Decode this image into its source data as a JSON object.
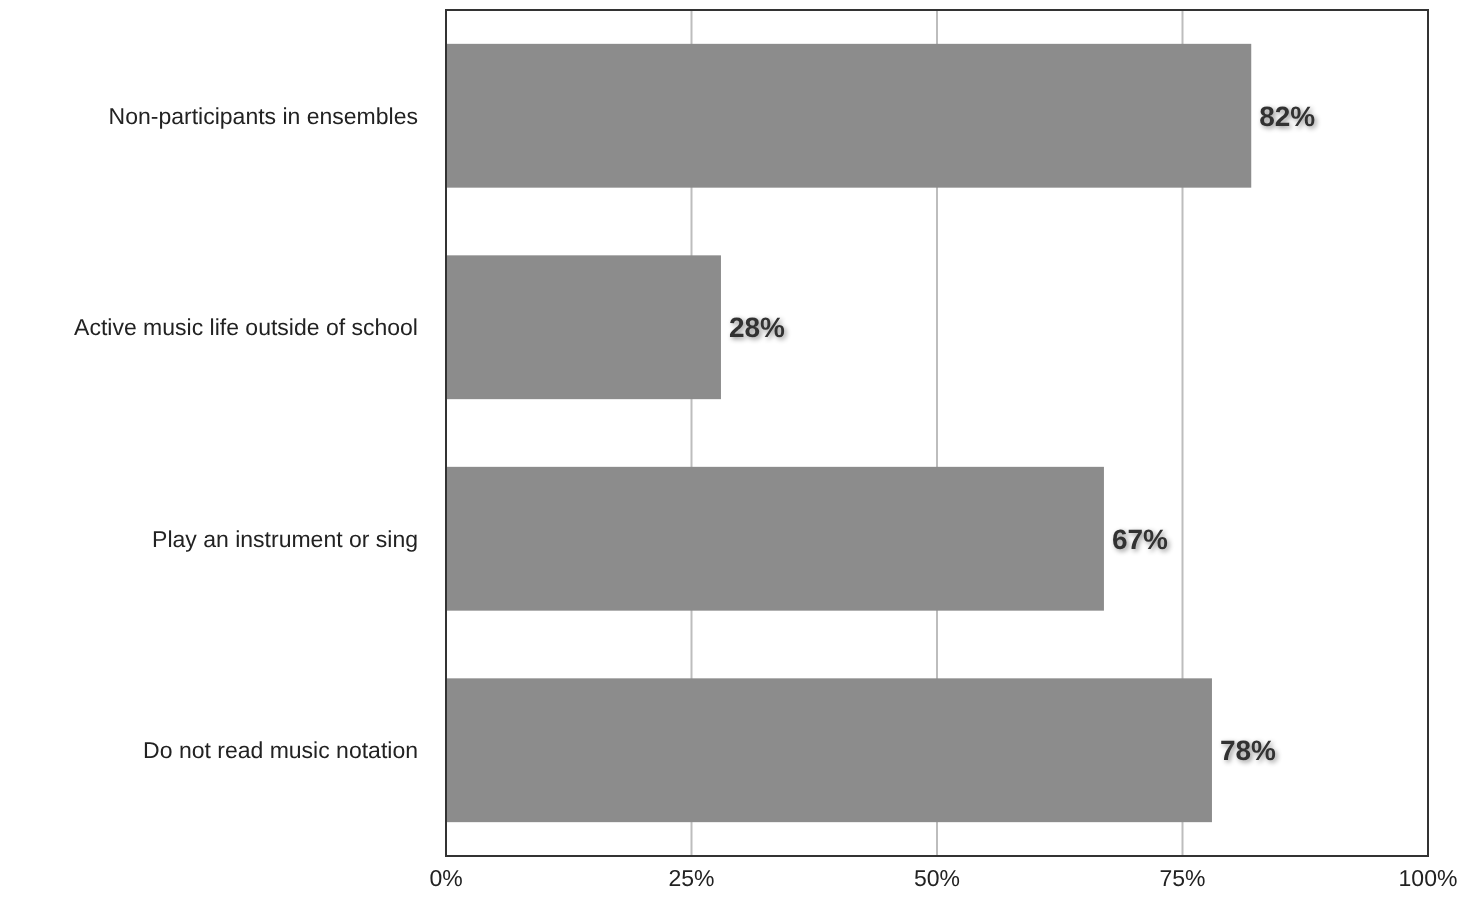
{
  "chart_data": {
    "type": "bar",
    "orientation": "horizontal",
    "categories": [
      "Non-participants in ensembles",
      "Active music life outside of school",
      "Play an instrument or sing",
      "Do not read music notation"
    ],
    "values": [
      82,
      28,
      67,
      78
    ],
    "value_labels": [
      "82%",
      "28%",
      "67%",
      "78%"
    ],
    "color": "#8c8c8c",
    "xlim": [
      0,
      100
    ],
    "xticks": [
      {
        "value": 0,
        "label": "0%"
      },
      {
        "value": 25,
        "label": "25%"
      },
      {
        "value": 50,
        "label": "50%"
      },
      {
        "value": 75,
        "label": "75%"
      },
      {
        "value": 100,
        "label": "100%"
      }
    ],
    "grid": "x"
  }
}
